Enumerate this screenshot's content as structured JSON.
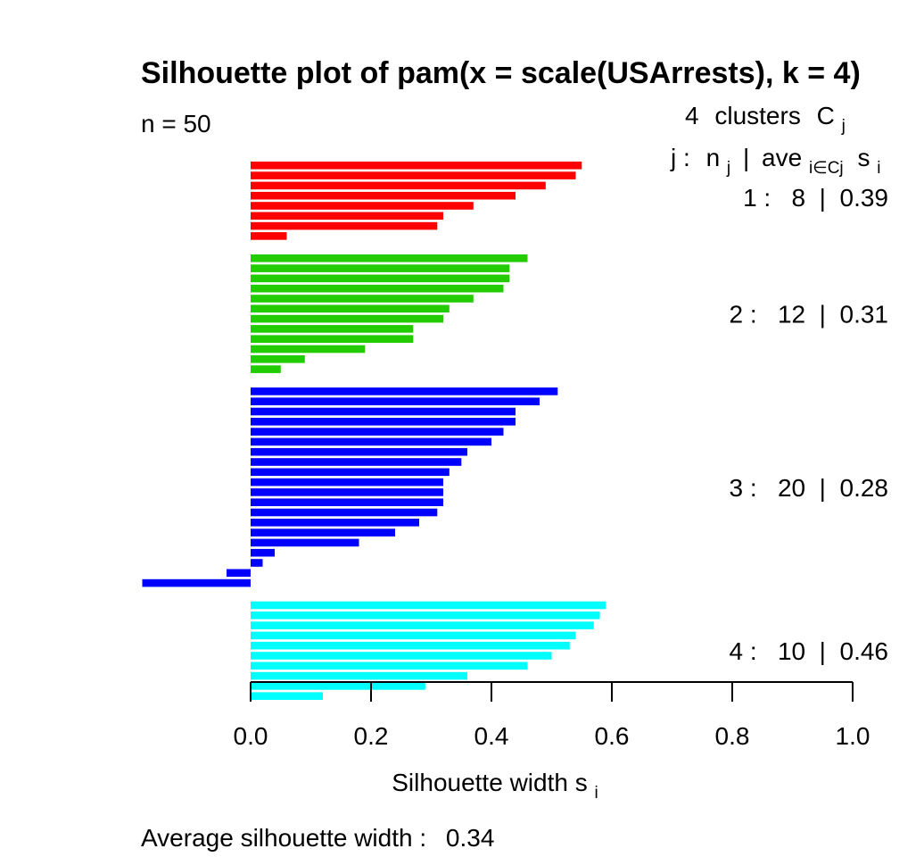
{
  "chart_data": {
    "type": "bar",
    "orientation": "horizontal",
    "title": "Silhouette plot of pam(x = scale(USArrests), k = 4)",
    "n_label": "n = 50",
    "xlabel": "Silhouette width s",
    "xlabel_sub": "i",
    "xlim": [
      0.0,
      1.0
    ],
    "x_ticks": [
      "0.0",
      "0.2",
      "0.4",
      "0.6",
      "0.8",
      "1.0"
    ],
    "legend": {
      "header_count": "4",
      "header_text": "clusters",
      "header_symbol": "C",
      "header_symbol_sub": "j",
      "col_j": "j :",
      "col_n": "n",
      "col_n_sub": "j",
      "col_sep": "|",
      "col_ave": "ave",
      "col_ave_sub": "i∈Cj",
      "col_s": "s",
      "col_s_sub": "i"
    },
    "clusters": [
      {
        "id": 1,
        "n": 8,
        "avg": 0.39,
        "summary": "1 :   8  |  0.39",
        "color": "#ff0000",
        "values": [
          0.55,
          0.54,
          0.49,
          0.44,
          0.37,
          0.32,
          0.31,
          0.06
        ]
      },
      {
        "id": 2,
        "n": 12,
        "avg": 0.31,
        "summary": "2 :   12  |  0.31",
        "color": "#22cc00",
        "values": [
          0.46,
          0.43,
          0.43,
          0.42,
          0.37,
          0.33,
          0.32,
          0.27,
          0.27,
          0.19,
          0.09,
          0.05
        ]
      },
      {
        "id": 3,
        "n": 20,
        "avg": 0.28,
        "summary": "3 :   20  |  0.28",
        "color": "#0000ff",
        "values": [
          0.51,
          0.48,
          0.44,
          0.44,
          0.42,
          0.4,
          0.36,
          0.35,
          0.33,
          0.32,
          0.32,
          0.32,
          0.31,
          0.28,
          0.24,
          0.18,
          0.04,
          0.02,
          -0.04,
          -0.18
        ]
      },
      {
        "id": 4,
        "n": 10,
        "avg": 0.46,
        "summary": "4 :   10  |  0.46",
        "color": "#00ffff",
        "values": [
          0.59,
          0.58,
          0.57,
          0.54,
          0.53,
          0.5,
          0.46,
          0.36,
          0.29,
          0.12
        ]
      }
    ],
    "average_silhouette_label": "Average silhouette width :",
    "average_silhouette_value": "0.34"
  }
}
